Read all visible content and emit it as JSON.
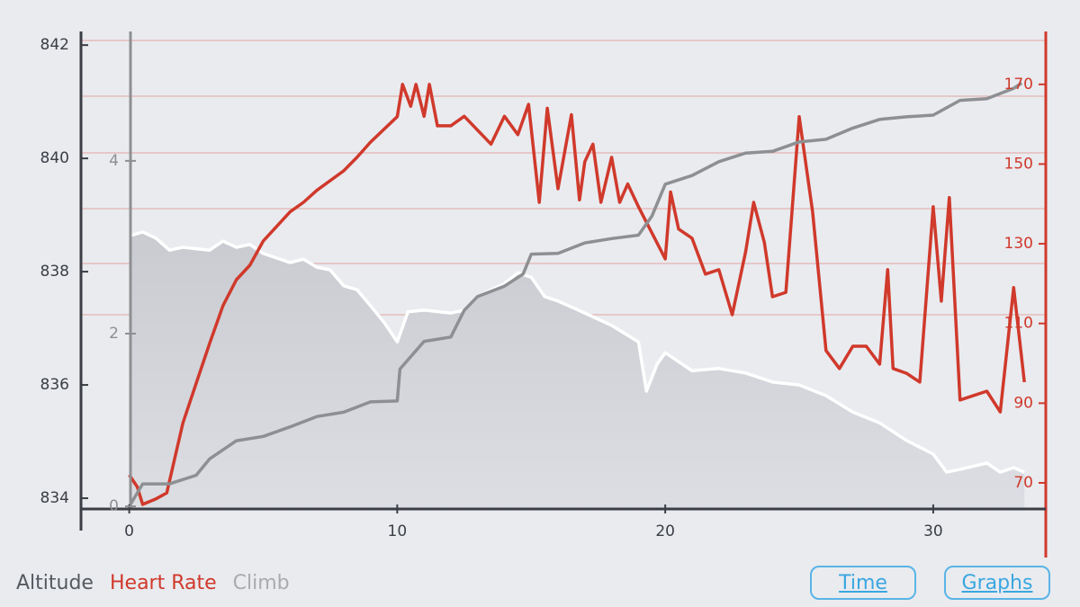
{
  "chart_data": {
    "type": "line",
    "xlim": [
      -1.8,
      34.2
    ],
    "xticks": [
      0,
      10,
      20,
      30
    ],
    "ylim": [
      833.81,
      842.32
    ],
    "yticks": [
      834,
      836,
      838,
      840,
      842
    ],
    "y2lim": [
      63.45,
      184.4
    ],
    "y2ticks": [
      70,
      90,
      110,
      130,
      150,
      170
    ],
    "y3lim": [
      -0.03,
      5.55
    ],
    "y3ticks": [
      0,
      2,
      4
    ],
    "series": [
      {
        "name": "Altitude",
        "color": "#ffffff",
        "axis": "y",
        "x": [
          0,
          0.5,
          1,
          1.5,
          2,
          3,
          3.5,
          4,
          4.5,
          5,
          6,
          6.5,
          7,
          7.5,
          8,
          8.5,
          9,
          9.5,
          10,
          10.4,
          11,
          12,
          12.5,
          13,
          14,
          14.5,
          15,
          15.5,
          16,
          17,
          18,
          19,
          19.3,
          19.7,
          20,
          21,
          22,
          23,
          24,
          25,
          26,
          27,
          28,
          29,
          30,
          30.5,
          31,
          32,
          32.5,
          33,
          33.4
        ],
        "values": [
          838.63,
          838.7,
          838.59,
          838.38,
          838.43,
          838.38,
          838.54,
          838.43,
          838.48,
          838.32,
          838.16,
          838.22,
          838.08,
          838.03,
          837.75,
          837.68,
          837.4,
          837.11,
          836.76,
          837.29,
          837.32,
          837.27,
          837.32,
          837.56,
          837.79,
          837.98,
          837.9,
          837.56,
          837.48,
          837.27,
          837.05,
          836.76,
          835.89,
          836.37,
          836.57,
          836.25,
          836.29,
          836.21,
          836.05,
          836.0,
          835.81,
          835.52,
          835.33,
          835.02,
          834.78,
          834.46,
          834.51,
          834.62,
          834.46,
          834.54,
          834.46
        ]
      },
      {
        "name": "Heart Rate",
        "color": "#d0392b",
        "axis": "y2",
        "x": [
          0,
          0.3,
          0.5,
          1,
          1.4,
          2,
          2.5,
          3,
          3.5,
          4,
          4.5,
          5,
          6,
          6.5,
          7,
          8,
          8.5,
          9,
          10,
          10.2,
          10.5,
          10.7,
          11,
          11.2,
          11.5,
          12,
          12.5,
          13,
          13.5,
          14,
          14.5,
          14.9,
          15.3,
          15.6,
          16,
          16.5,
          16.8,
          17,
          17.3,
          17.6,
          18,
          18.3,
          18.6,
          19,
          20,
          20.2,
          20.5,
          21,
          21.5,
          22,
          22.5,
          23,
          23.3,
          23.7,
          24,
          24.5,
          25,
          25.5,
          26,
          26.5,
          27,
          27.5,
          28,
          28.3,
          28.5,
          29,
          29.5,
          30,
          30.3,
          30.6,
          31,
          32,
          32.5,
          33,
          33.4
        ],
        "values": [
          72,
          69,
          64.6,
          66,
          67.5,
          85,
          95,
          105,
          114.5,
          121,
          124.6,
          130.7,
          138,
          140.4,
          143.4,
          148.3,
          151.7,
          155.5,
          161.9,
          170,
          164.5,
          170,
          162,
          170,
          159.6,
          159.6,
          162,
          158.5,
          155,
          162,
          157.4,
          165,
          140.4,
          164,
          143.8,
          162.4,
          141,
          150.6,
          155,
          140.4,
          151.7,
          140.4,
          145,
          139.3,
          126.2,
          143,
          133.7,
          131.4,
          122.4,
          123.5,
          112.2,
          128,
          140.4,
          130.3,
          116.7,
          117.8,
          161.9,
          138,
          103.2,
          98.7,
          104.3,
          104.3,
          99.8,
          123.5,
          98.7,
          97.5,
          95.3,
          139.3,
          115.6,
          141.6,
          90.8,
          93,
          87.8,
          119,
          95.3
        ]
      },
      {
        "name": "Climb",
        "color": "#8e8f92",
        "axis": "y3",
        "x": [
          0,
          0.5,
          1.5,
          2.5,
          3,
          4,
          5,
          6,
          7,
          8,
          9,
          10,
          10.1,
          11,
          12,
          12.5,
          13,
          14,
          14.7,
          15,
          16,
          17,
          18,
          19,
          19.5,
          20,
          21,
          22,
          23,
          24,
          25,
          26,
          27,
          28,
          29,
          30,
          31,
          32,
          33,
          33.3
        ],
        "values": [
          0,
          0.26,
          0.26,
          0.36,
          0.55,
          0.76,
          0.81,
          0.92,
          1.04,
          1.09,
          1.21,
          1.22,
          1.59,
          1.91,
          1.96,
          2.27,
          2.43,
          2.55,
          2.69,
          2.92,
          2.93,
          3.05,
          3.1,
          3.14,
          3.36,
          3.73,
          3.83,
          3.99,
          4.09,
          4.11,
          4.22,
          4.25,
          4.38,
          4.48,
          4.51,
          4.53,
          4.7,
          4.72,
          4.84,
          4.9
        ]
      }
    ]
  },
  "buttons": [
    "Time",
    "Graphs"
  ]
}
